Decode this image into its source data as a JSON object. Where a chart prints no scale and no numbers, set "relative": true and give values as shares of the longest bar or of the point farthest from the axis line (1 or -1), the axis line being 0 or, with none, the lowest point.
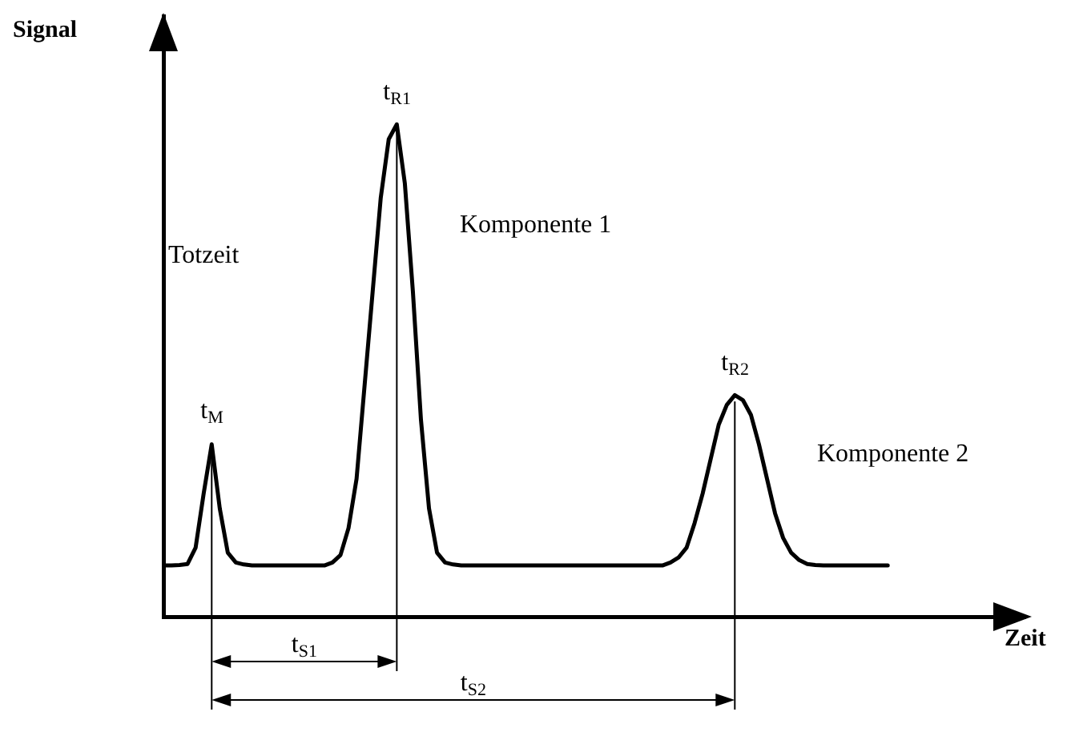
{
  "chart_data": {
    "type": "line",
    "relative": true,
    "xlabel": "Zeit",
    "ylabel": "Signal",
    "grid": false,
    "legend": false,
    "marker": "none",
    "line_style": "solid",
    "categories": [
      null,
      null,
      null,
      null,
      null,
      null,
      null,
      null,
      null,
      null,
      null,
      null,
      null,
      null,
      null,
      null,
      null,
      null,
      null,
      null,
      null,
      null,
      null,
      null,
      null,
      null,
      null,
      null,
      null,
      null,
      null,
      null,
      null,
      null,
      null,
      null,
      null,
      null,
      null,
      null,
      null,
      null,
      null,
      null,
      null,
      null,
      null,
      null,
      null,
      null,
      null,
      null,
      null,
      null,
      null,
      null,
      null,
      null,
      null,
      null,
      null,
      null,
      null,
      null,
      null,
      null,
      null,
      null,
      null,
      null,
      null,
      null,
      null,
      null,
      null,
      null,
      null,
      null,
      null,
      null,
      null,
      null,
      null,
      null,
      null,
      null,
      null,
      null,
      null,
      null,
      null
    ],
    "series": [
      {
        "color": "#000000",
        "values": [
          0.104,
          0.104,
          0.105,
          0.107,
          0.14,
          0.25,
          0.35,
          0.22,
          0.13,
          0.11,
          0.106,
          0.104,
          0.104,
          0.104,
          0.104,
          0.104,
          0.104,
          0.104,
          0.104,
          0.104,
          0.104,
          0.11,
          0.125,
          0.18,
          0.28,
          0.47,
          0.66,
          0.85,
          0.97,
          1,
          0.88,
          0.66,
          0.4,
          0.22,
          0.13,
          0.11,
          0.106,
          0.104,
          0.104,
          0.104,
          0.104,
          0.104,
          0.104,
          0.104,
          0.104,
          0.104,
          0.104,
          0.104,
          0.104,
          0.104,
          0.104,
          0.104,
          0.104,
          0.104,
          0.104,
          0.104,
          0.104,
          0.104,
          0.104,
          0.104,
          0.104,
          0.104,
          0.104,
          0.11,
          0.12,
          0.14,
          0.19,
          0.25,
          0.32,
          0.39,
          0.43,
          0.45,
          0.44,
          0.41,
          0.35,
          0.28,
          0.21,
          0.16,
          0.13,
          0.115,
          0.107,
          0.105,
          0.104,
          0.104,
          0.104,
          0.104,
          0.104,
          0.104,
          0.104,
          0.104,
          0.104
        ]
      }
    ],
    "annotations": [
      "Totzeit",
      "Komponente 1",
      "Komponente 2",
      "t$_{M}$",
      "t$_{R1}$",
      "t$_{R2}$",
      "t$_{S1}$",
      "t$_{S2}$"
    ]
  }
}
